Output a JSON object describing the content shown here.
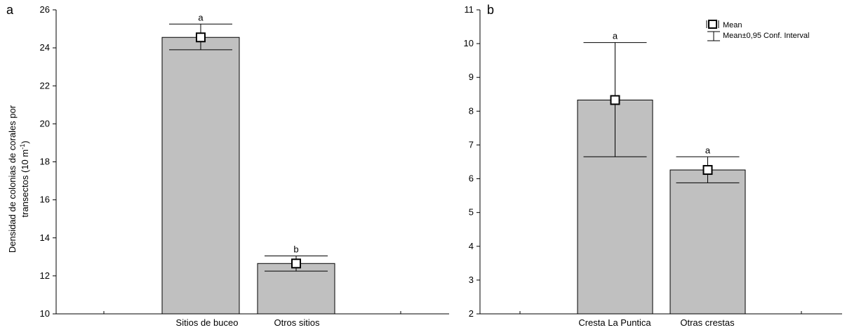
{
  "chart_data": [
    {
      "type": "bar",
      "panel": "a",
      "categories": [
        "Sitios de buceo",
        "Otros sitios"
      ],
      "values": [
        24.55,
        12.65
      ],
      "ci_low": [
        23.9,
        12.25
      ],
      "ci_high": [
        25.25,
        13.05
      ],
      "significance": [
        "a",
        "b"
      ],
      "ylabel_line1": "Densidad de colonias de corales por",
      "ylabel_line2": "transectos (10 m",
      "ylabel_sup": "-1",
      "ylabel_close": ")",
      "ylim": [
        10,
        26
      ],
      "yticks": [
        "10",
        "12",
        "14",
        "16",
        "18",
        "20",
        "22",
        "24",
        "26"
      ]
    },
    {
      "type": "bar",
      "panel": "b",
      "categories": [
        "Cresta La Puntica",
        "Otras crestas"
      ],
      "values": [
        8.33,
        6.26
      ],
      "ci_low": [
        6.65,
        5.88
      ],
      "ci_high": [
        10.03,
        6.65
      ],
      "significance": [
        "a",
        "a"
      ],
      "ylim": [
        2,
        11
      ],
      "yticks": [
        "2",
        "3",
        "4",
        "5",
        "6",
        "7",
        "8",
        "9",
        "10",
        "11"
      ],
      "legend": {
        "mean": "Mean",
        "ci": "Mean±0,95 Conf. Interval"
      }
    }
  ],
  "style": {
    "bar_fill": "#c0c0c0",
    "axis_color": "#000000"
  }
}
